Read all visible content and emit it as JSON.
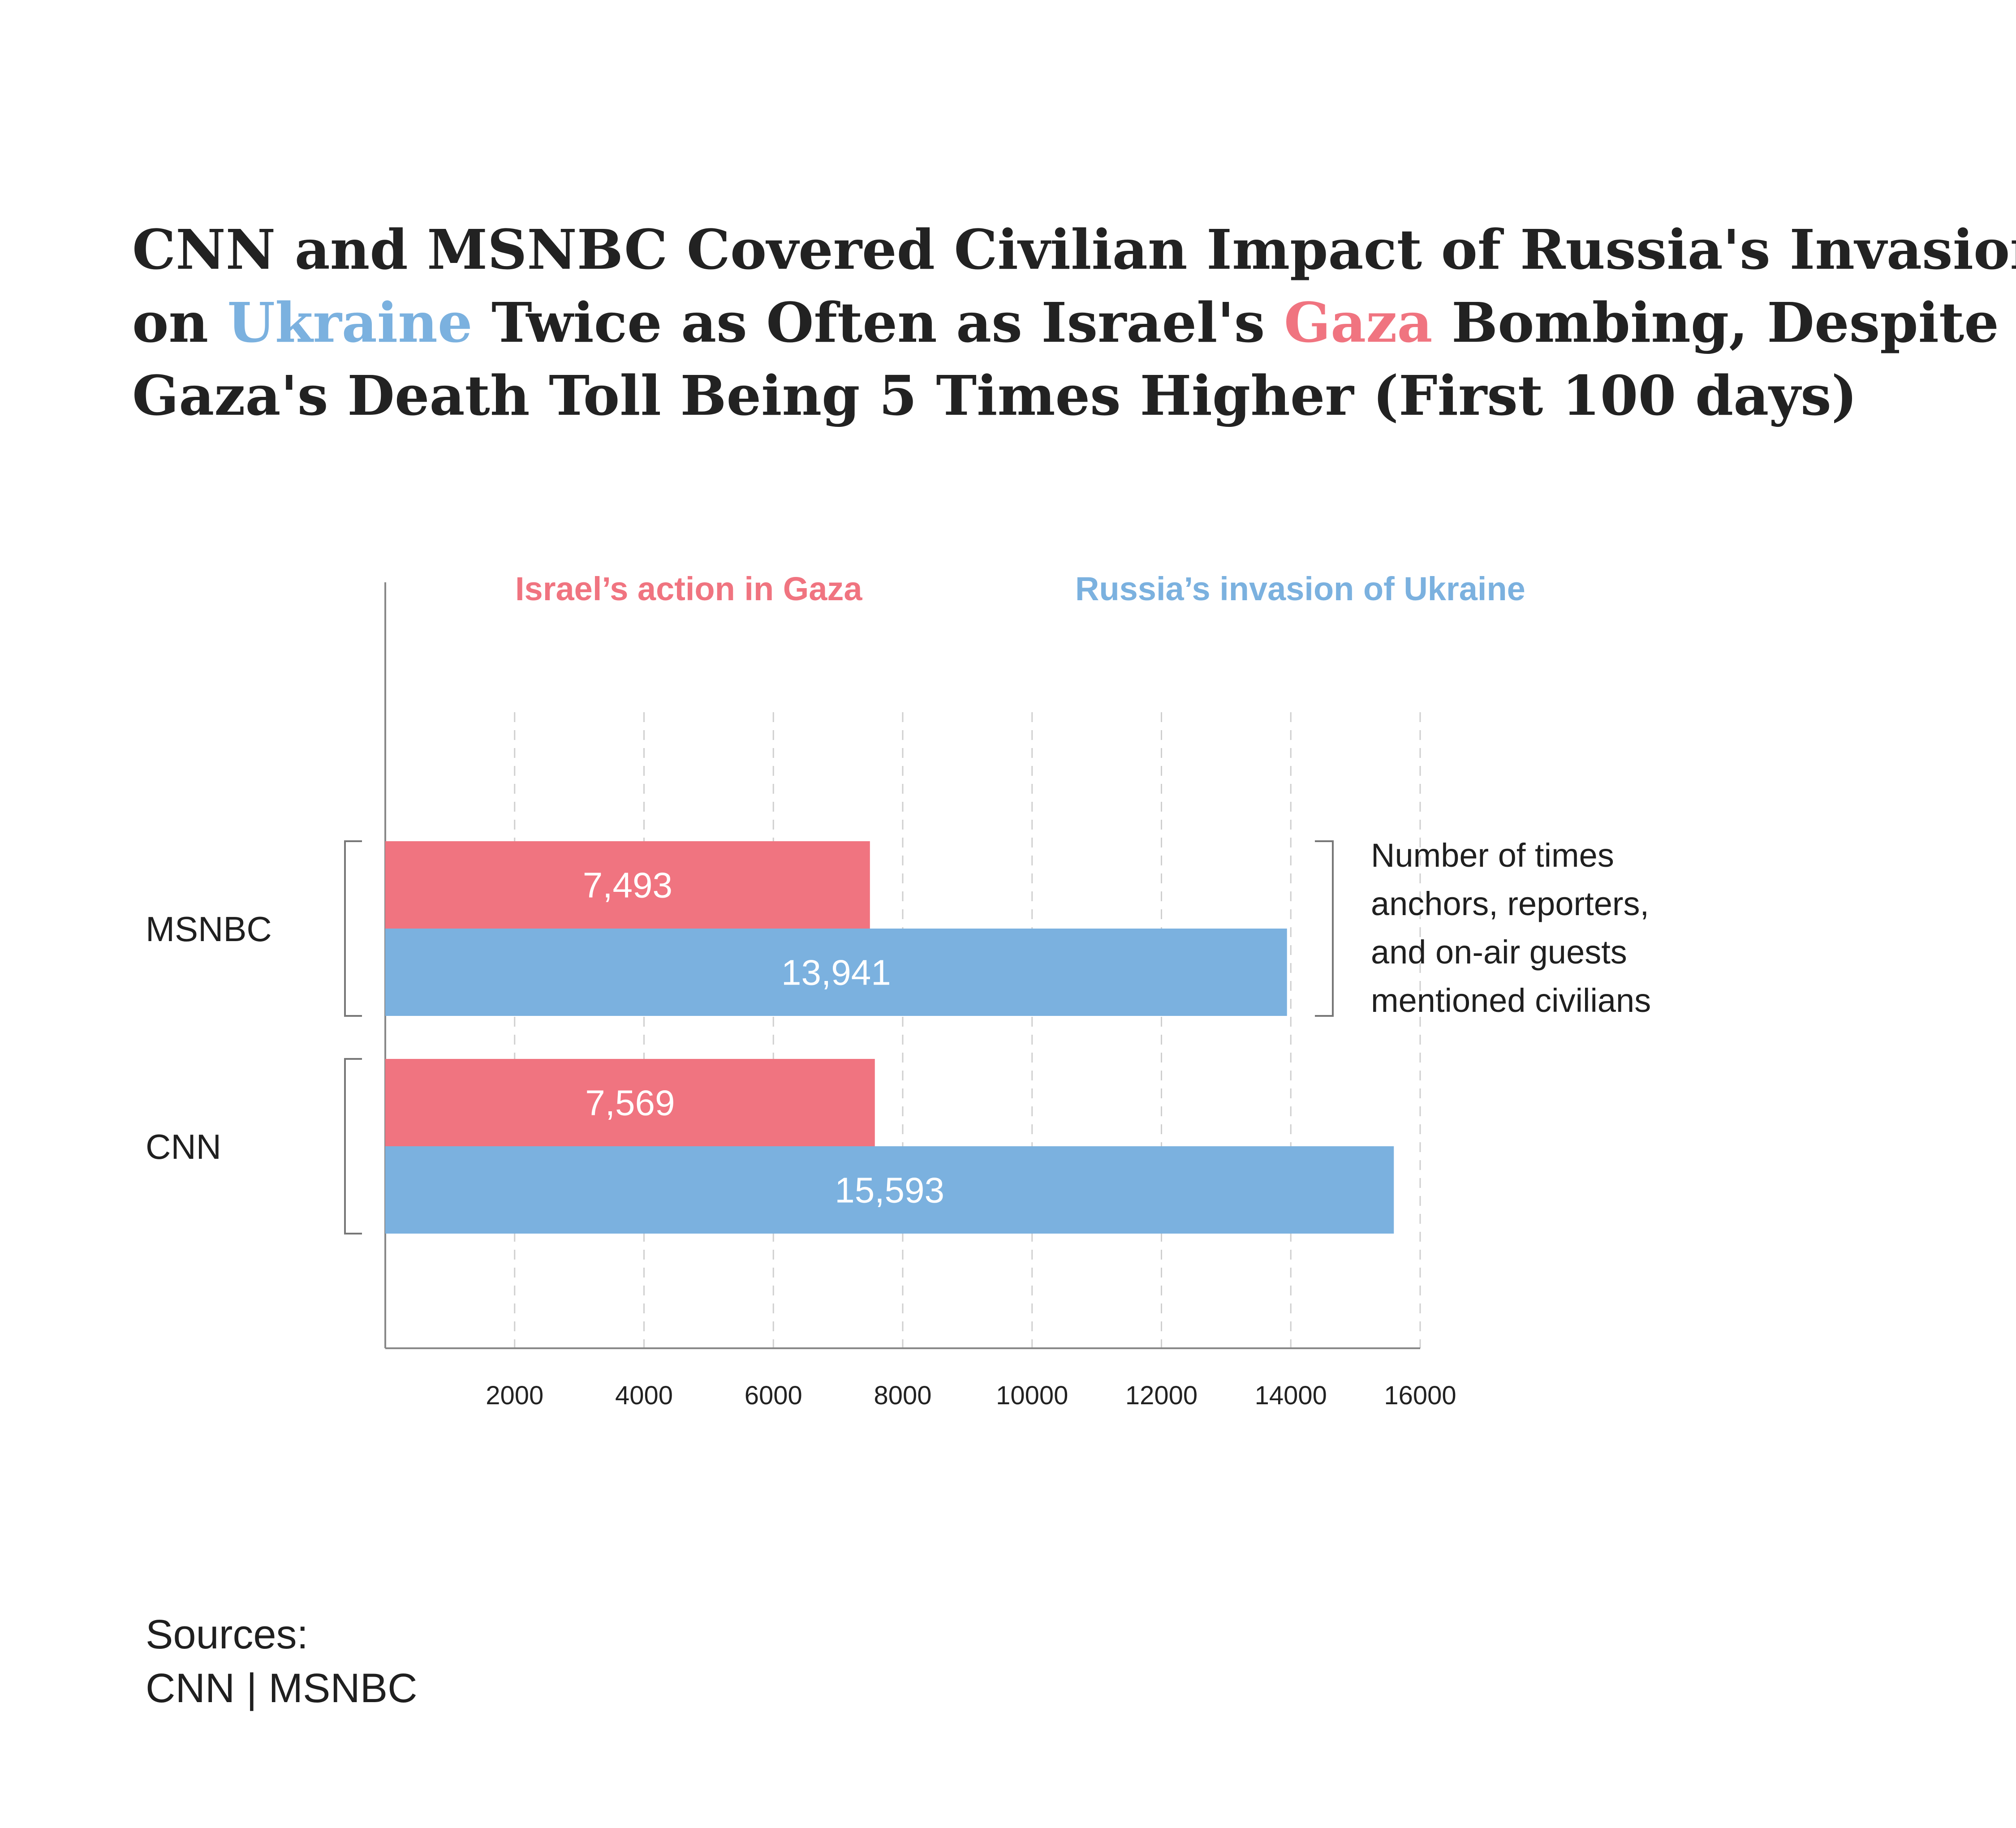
{
  "title": {
    "line1": "CNN and MSNBC Covered Civilian Impact of Russia's Invasion",
    "line2_prefix": "on ",
    "line2_highlight1": "Ukraine",
    "line2_middle": " Twice as Often as Israel's ",
    "line2_highlight2": "Gaza",
    "line2_suffix": " Bombing, Despite",
    "line3": "Gaza's Death Toll Being 5 Times Higher (First 100 days)"
  },
  "colors": {
    "gaza": "#F07480",
    "ukraine": "#7BB1DF",
    "axis": "#888888",
    "grid": "#CFCFCF",
    "bracket": "#777777"
  },
  "chart_data": {
    "type": "bar",
    "orientation": "horizontal",
    "categories": [
      "MSNBC",
      "CNN"
    ],
    "series": [
      {
        "name": "Israel’s action in Gaza",
        "values": [
          7493,
          7569
        ],
        "labels": [
          "7,493",
          "7,569"
        ]
      },
      {
        "name": "Russia’s invasion of Ukraine",
        "values": [
          13941,
          15593
        ],
        "labels": [
          "13,941",
          "15,593"
        ]
      }
    ],
    "xlim": [
      0,
      16000
    ],
    "xticks": [
      2000,
      4000,
      6000,
      8000,
      10000,
      12000,
      14000,
      16000
    ],
    "xtick_labels": [
      "2000",
      "4000",
      "6000",
      "8000",
      "10000",
      "12000",
      "14000",
      "16000"
    ],
    "grid": true,
    "legend_position": "top",
    "annotation": {
      "lines": [
        "Number of times",
        "anchors, reporters,",
        "and on-air guests",
        "mentioned civilians"
      ]
    }
  },
  "sources": {
    "heading": "Sources:",
    "text": "CNN | MSNBC"
  }
}
